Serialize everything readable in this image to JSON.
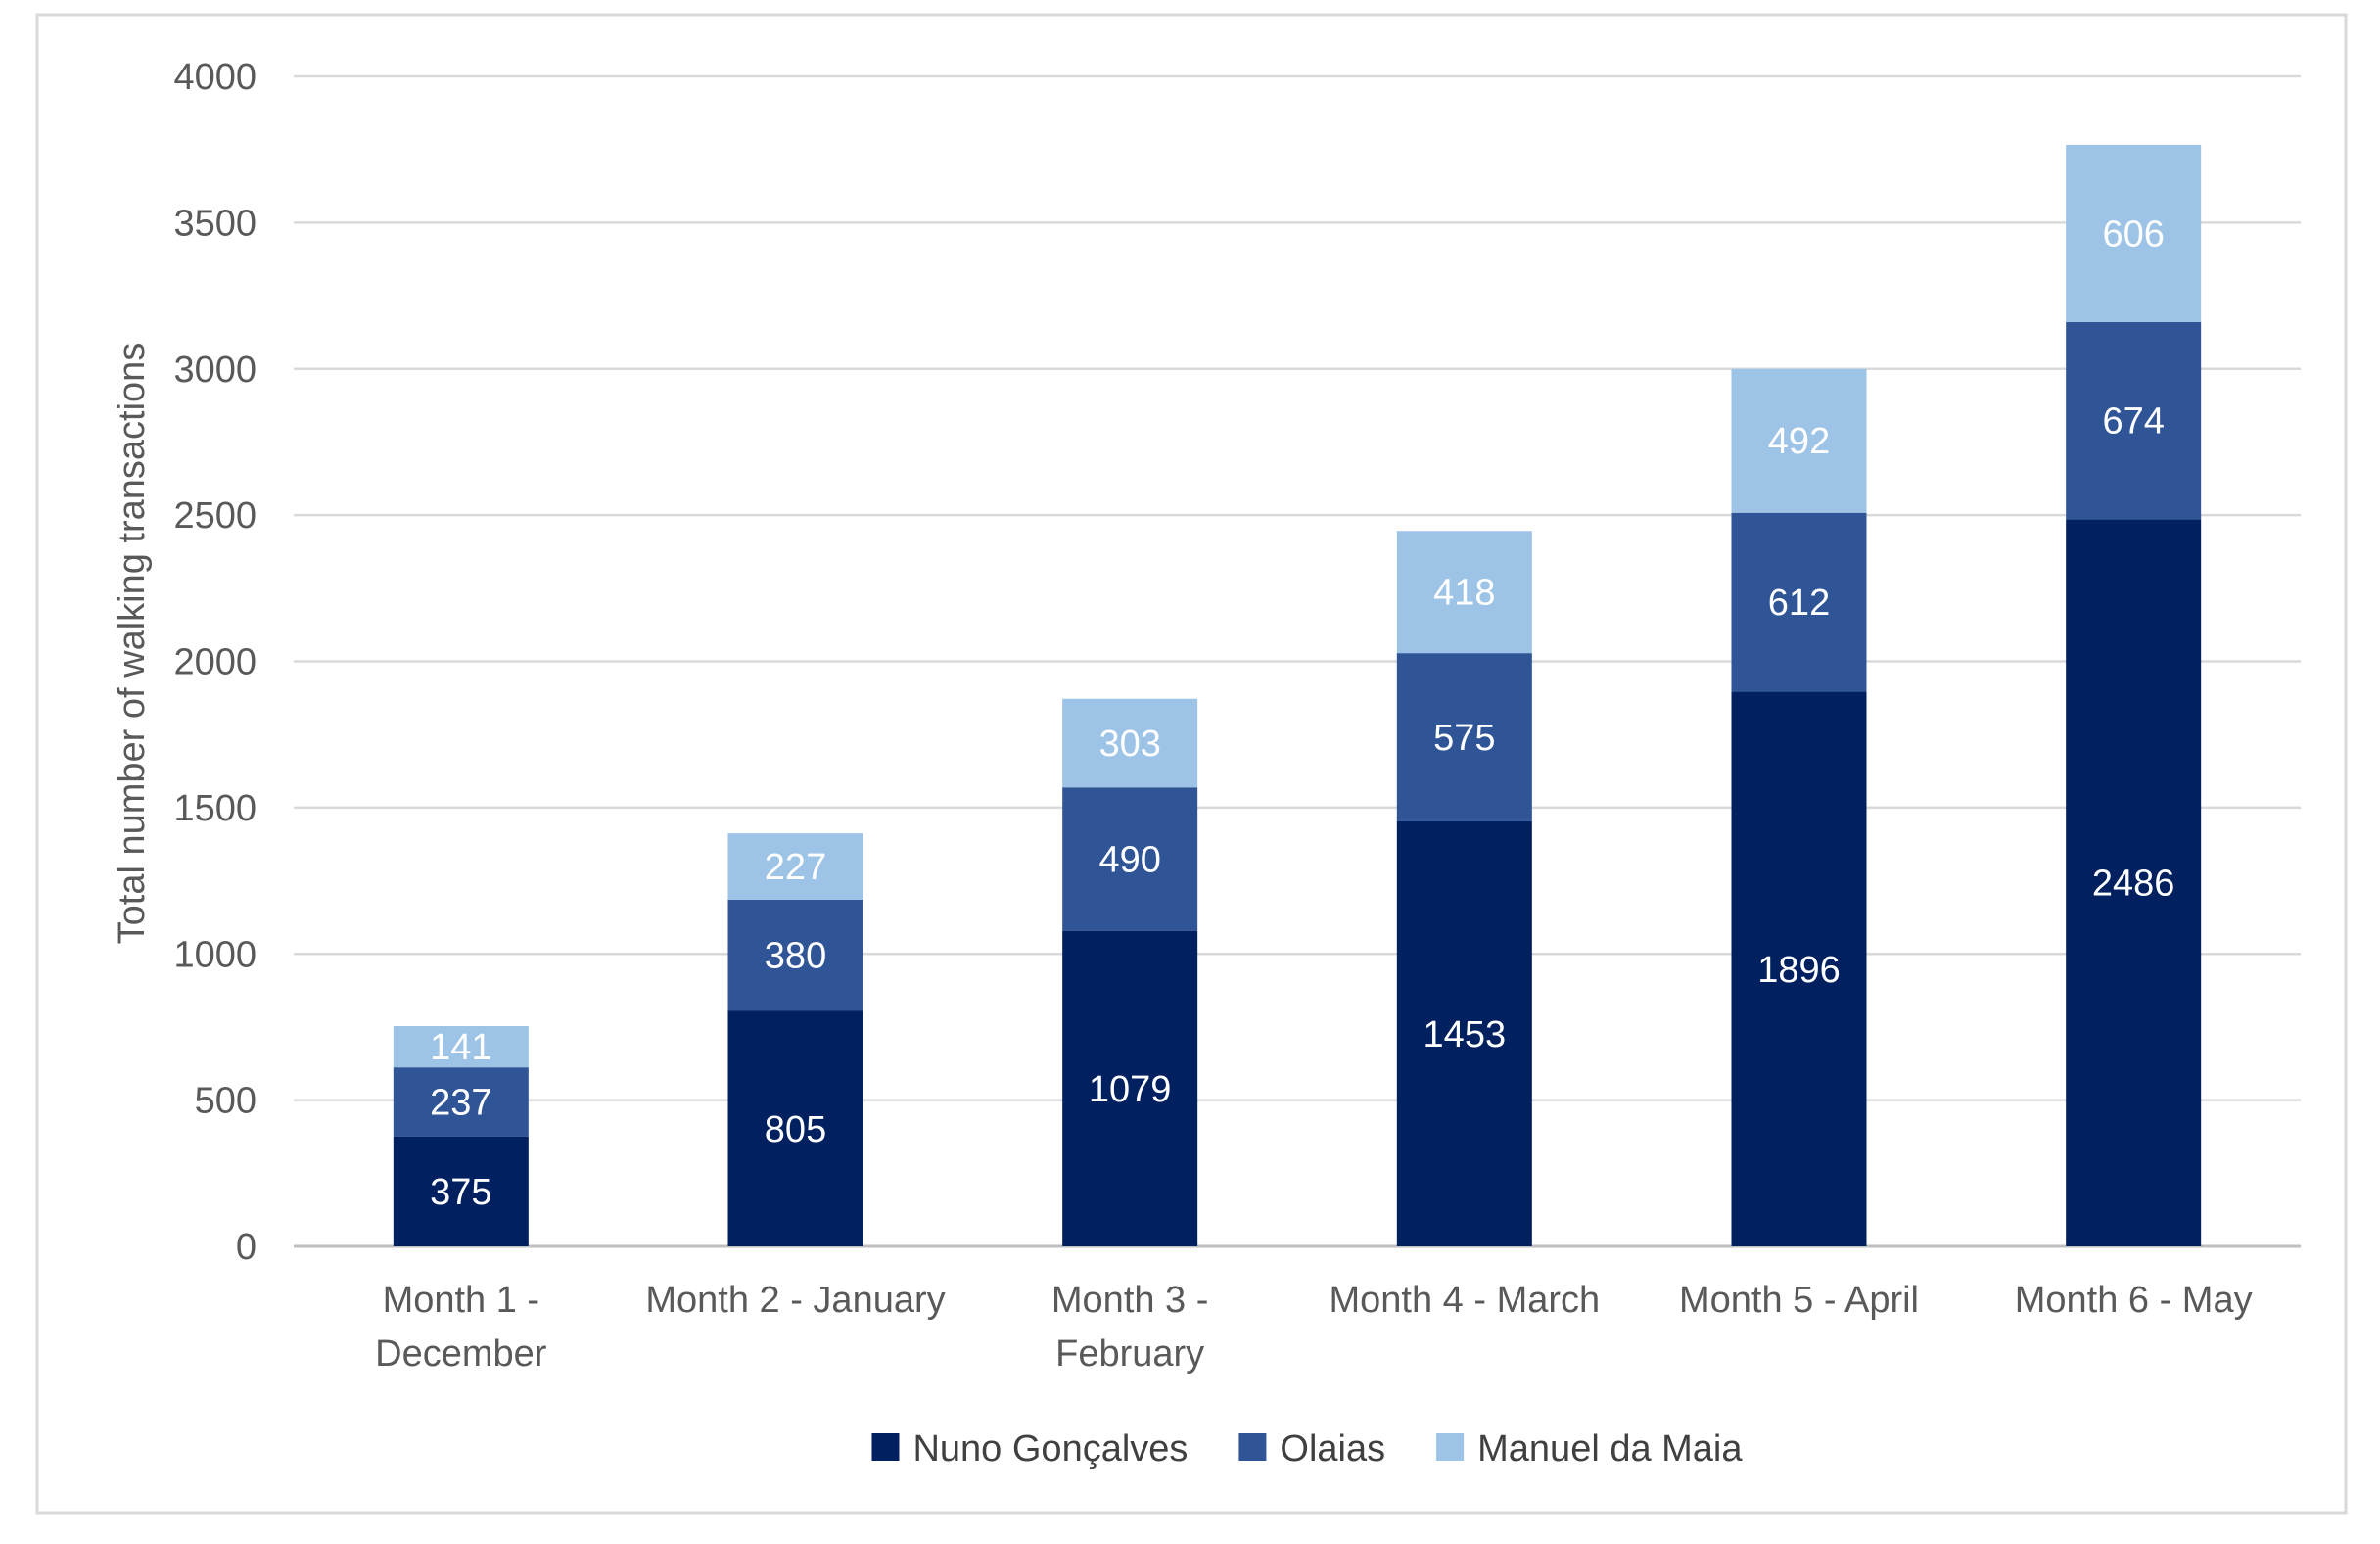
{
  "chart_data": {
    "type": "bar",
    "stacked": true,
    "title": "",
    "xlabel": "",
    "ylabel": "Total number of walking transactions",
    "ylim": [
      0,
      4000
    ],
    "yticks": [
      0,
      500,
      1000,
      1500,
      2000,
      2500,
      3000,
      3500,
      4000
    ],
    "grid": true,
    "legend_position": "bottom",
    "categories": [
      [
        "Month 1 -",
        "December"
      ],
      [
        "Month 2 - January"
      ],
      [
        "Month 3 -",
        "February"
      ],
      [
        "Month 4 - March"
      ],
      [
        "Month 5 - April"
      ],
      [
        "Month 6 - May"
      ]
    ],
    "series": [
      {
        "name": "Nuno Gonçalves",
        "color": "#002060",
        "values": [
          375,
          805,
          1079,
          1453,
          1896,
          2486
        ]
      },
      {
        "name": "Olaias",
        "color": "#2F5597",
        "values": [
          237,
          380,
          490,
          575,
          612,
          674
        ]
      },
      {
        "name": "Manuel da Maia",
        "color": "#9DC3E6",
        "values": [
          141,
          227,
          303,
          418,
          492,
          606
        ]
      }
    ]
  }
}
